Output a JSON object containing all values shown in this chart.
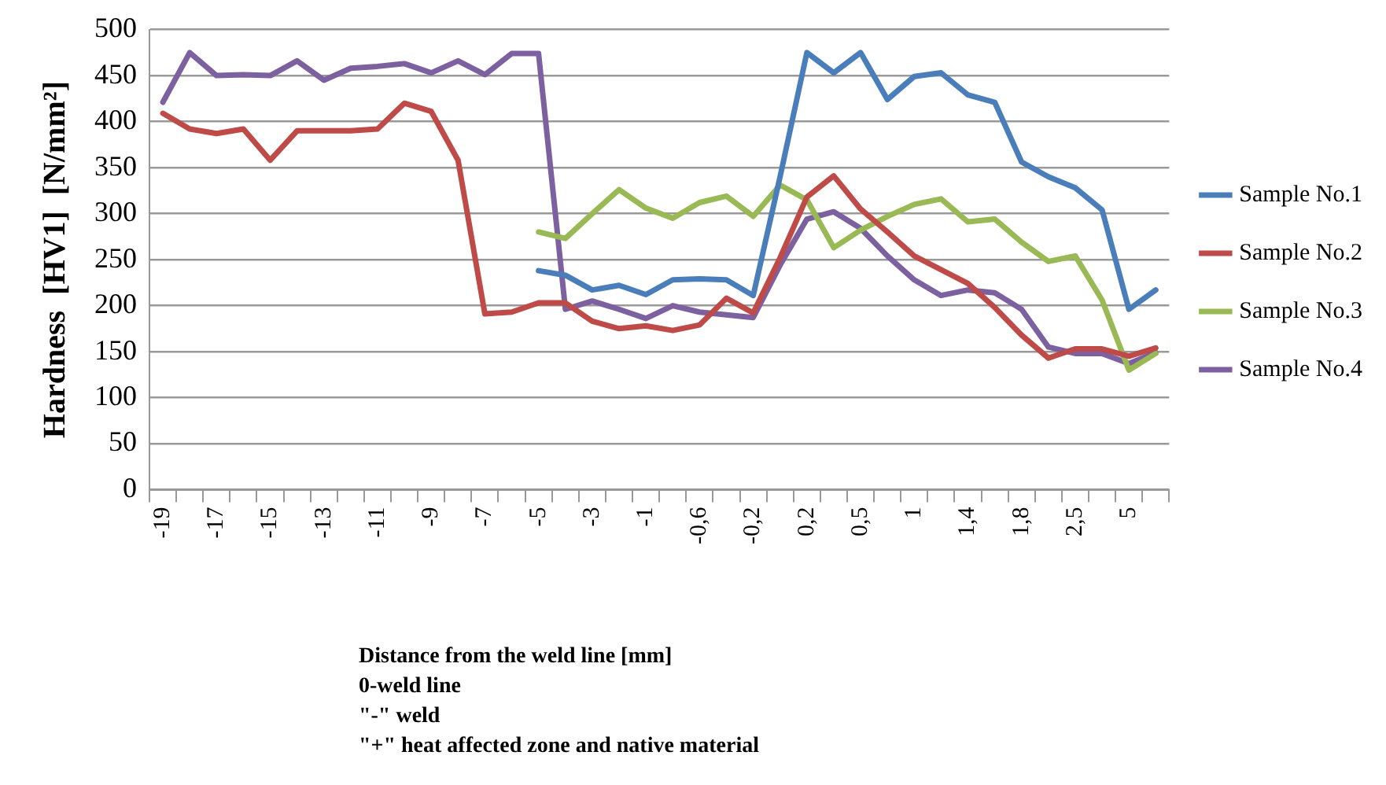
{
  "chart_data": {
    "type": "line",
    "ylabel": "Hardness  [HV1]  [N/mm²]",
    "xlabel": "Distance from the weld line [mm]",
    "annotations": [
      "0-weld line",
      "\"-\" weld",
      "\"+\" heat affected zone and native material"
    ],
    "categories": [
      "-19",
      null,
      "-17",
      null,
      "-15",
      null,
      "-13",
      null,
      "-11",
      null,
      "-9",
      null,
      "-7",
      null,
      "-5",
      null,
      "-3",
      null,
      "-1",
      null,
      "-0,6",
      null,
      "-0,2",
      null,
      "0,2",
      null,
      "0,5",
      null,
      "1",
      null,
      "1,4",
      null,
      "1,8",
      null,
      "2,5",
      null,
      "5",
      null
    ],
    "series": [
      {
        "name": "Sample No.1",
        "color": "#4a7ebb",
        "values": [
          null,
          null,
          null,
          null,
          null,
          null,
          null,
          null,
          null,
          null,
          null,
          null,
          null,
          null,
          238,
          233,
          217,
          222,
          212,
          228,
          229,
          228,
          211,
          340,
          475,
          453,
          475,
          424,
          449,
          453,
          429,
          421,
          356,
          340,
          328,
          304,
          196,
          217
        ]
      },
      {
        "name": "Sample No.2",
        "color": "#be4b48",
        "values": [
          409,
          392,
          387,
          392,
          358,
          390,
          390,
          390,
          392,
          420,
          411,
          358,
          191,
          193,
          203,
          203,
          183,
          175,
          178,
          173,
          179,
          208,
          192,
          252,
          318,
          341,
          305,
          280,
          254,
          239,
          224,
          198,
          168,
          143,
          153,
          153,
          145,
          154
        ]
      },
      {
        "name": "Sample No.3",
        "color": "#98b954",
        "values": [
          null,
          null,
          null,
          null,
          null,
          null,
          null,
          null,
          null,
          null,
          null,
          null,
          null,
          null,
          280,
          273,
          300,
          326,
          306,
          295,
          312,
          319,
          297,
          331,
          315,
          263,
          282,
          297,
          310,
          316,
          291,
          294,
          269,
          248,
          254,
          206,
          130,
          148
        ]
      },
      {
        "name": "Sample No.4",
        "color": "#7d60a0",
        "values": [
          421,
          475,
          450,
          451,
          450,
          466,
          445,
          458,
          460,
          463,
          453,
          466,
          451,
          474,
          474,
          196,
          205,
          196,
          186,
          200,
          193,
          190,
          187,
          244,
          294,
          302,
          284,
          254,
          228,
          211,
          217,
          214,
          196,
          155,
          148,
          148,
          137,
          149
        ]
      }
    ],
    "ylim": [
      0,
      500
    ],
    "yticks": [
      0,
      50,
      100,
      150,
      200,
      250,
      300,
      350,
      400,
      450,
      500
    ],
    "grid": "y",
    "legend": "right",
    "marker": "none",
    "line_style": "solid"
  }
}
